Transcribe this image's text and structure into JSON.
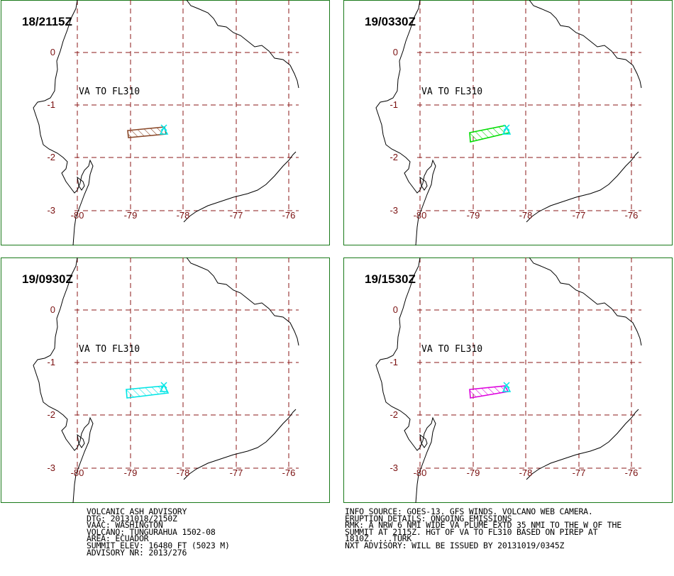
{
  "colors": {
    "frame": "#1a7a1a",
    "grid": "#8b1a1a",
    "ticks": "#7a1010",
    "coast": "#000000",
    "volcano_marker": "#00e5e5"
  },
  "map": {
    "lon_ticks": [
      "-80",
      "-79",
      "-78",
      "-77",
      "-76"
    ],
    "lat_ticks": [
      "0",
      "-1",
      "-2",
      "-3"
    ],
    "va_label": "VA TO FL310"
  },
  "panels": [
    {
      "time": "18/2115Z",
      "color": "#8b4a2b"
    },
    {
      "time": "19/0330Z",
      "color": "#00dd00"
    },
    {
      "time": "19/0930Z",
      "color": "#00e5e5"
    },
    {
      "time": "19/1530Z",
      "color": "#dd00dd"
    }
  ],
  "advisory_left": [
    "VOLCANIC ASH ADVISORY",
    "DTG: 20131018/2150Z",
    "VAAC: WASHINGTON",
    "VOLCANO: TUNGURAHUA 1502-08",
    "AREA: ECUADOR",
    "SUMMIT ELEV: 16480 FT (5023 M)",
    "ADVISORY NR: 2013/276"
  ],
  "advisory_right": [
    "INFO SOURCE: GOES-13. GFS WINDS. VOLCANO WEB CAMERA.",
    "ERUPTION DETAILS: ONGOING EMISSIONS",
    "RMK: A NRW 6 NMI WIDE VA PLUME EXTD 35 NMI TO THE W OF THE",
    "SUMMIT AT 2115Z. HGT OF VA TO FL310 BASED ON PIREP AT",
    "1810Z. ...TURK",
    "NXT ADVISORY: WILL BE ISSUED BY 20131019/0345Z"
  ]
}
